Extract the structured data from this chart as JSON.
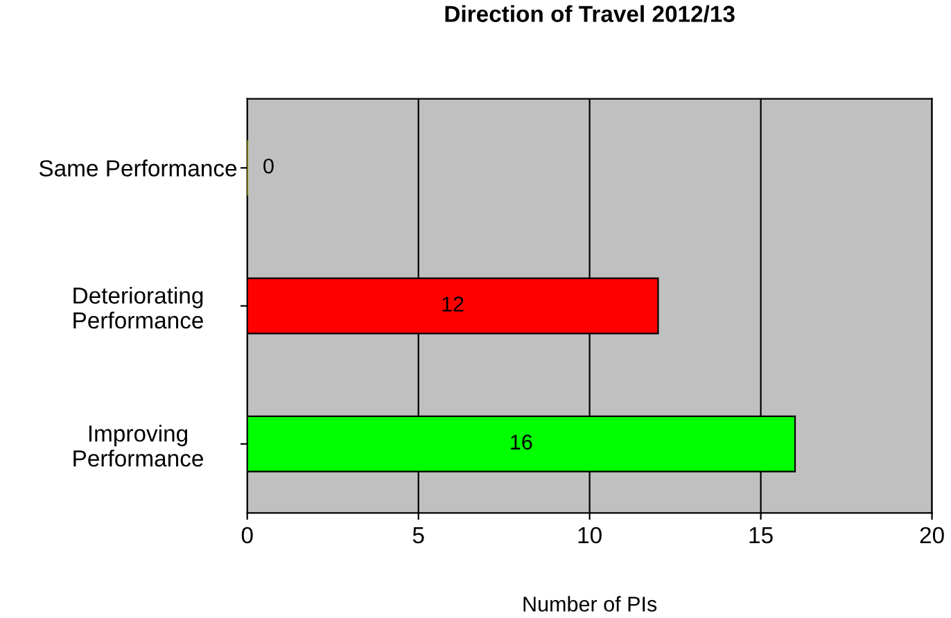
{
  "chart_data": {
    "type": "bar",
    "orientation": "horizontal",
    "title": "Direction of Travel 2012/13",
    "xlabel": "Number of PIs",
    "categories": [
      "Same Performance",
      "Deteriorating\nPerformance",
      "Improving\nPerformance"
    ],
    "values": [
      0,
      12,
      16
    ],
    "colors": [
      "#999900",
      "#ff0000",
      "#00ff00"
    ],
    "xlim": [
      0,
      20
    ],
    "xticks": [
      0,
      5,
      10,
      15,
      20
    ],
    "grid": "x",
    "data_labels": true
  }
}
